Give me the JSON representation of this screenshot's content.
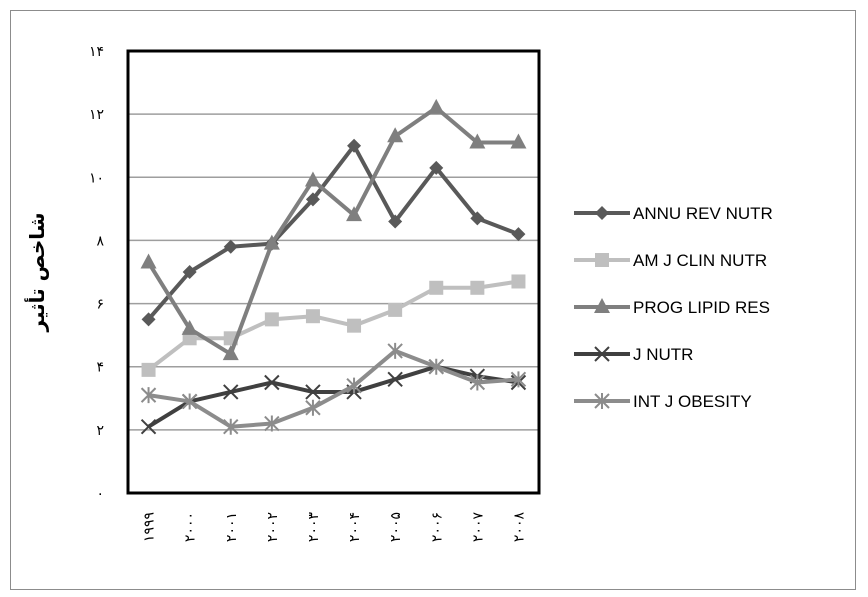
{
  "chart_data": {
    "type": "line",
    "title": "",
    "xlabel": "",
    "ylabel": "شاخص تأثیر",
    "categories": [
      "۱۹۹۹",
      "۲۰۰۰",
      "۲۰۰۱",
      "۲۰۰۲",
      "۲۰۰۳",
      "۲۰۰۴",
      "۲۰۰۵",
      "۲۰۰۶",
      "۲۰۰۷",
      "۲۰۰۸"
    ],
    "ylim": [
      0,
      14
    ],
    "yticks": [
      0,
      2,
      4,
      6,
      8,
      10,
      12,
      14
    ],
    "ytick_labels": [
      "۰",
      "۲",
      "۴",
      "۶",
      "۸",
      "۱۰",
      "۱۲",
      "۱۴"
    ],
    "grid": true,
    "legend_position": "right",
    "series": [
      {
        "name": "ANNU REV NUTR",
        "marker": "diamond",
        "color": "#595959",
        "values": [
          5.5,
          7.0,
          7.8,
          7.9,
          9.3,
          11.0,
          8.6,
          10.3,
          8.7,
          8.2
        ]
      },
      {
        "name": "AM J CLIN NUTR",
        "marker": "square",
        "color": "#bfbfbf",
        "values": [
          3.9,
          4.9,
          4.9,
          5.5,
          5.6,
          5.3,
          5.8,
          6.5,
          6.5,
          6.7
        ]
      },
      {
        "name": "PROG LIPID RES",
        "marker": "triangle",
        "color": "#7f7f7f",
        "values": [
          7.3,
          5.2,
          4.4,
          7.9,
          9.9,
          8.8,
          11.3,
          12.2,
          11.1,
          11.1
        ]
      },
      {
        "name": "J NUTR",
        "marker": "x",
        "color": "#404040",
        "values": [
          2.1,
          2.9,
          3.2,
          3.5,
          3.2,
          3.2,
          3.6,
          4.0,
          3.7,
          3.5
        ]
      },
      {
        "name": "INT J OBESITY",
        "marker": "star",
        "color": "#8c8c8c",
        "values": [
          3.1,
          2.9,
          2.1,
          2.2,
          2.7,
          3.4,
          4.5,
          4.0,
          3.5,
          3.6
        ]
      }
    ]
  }
}
